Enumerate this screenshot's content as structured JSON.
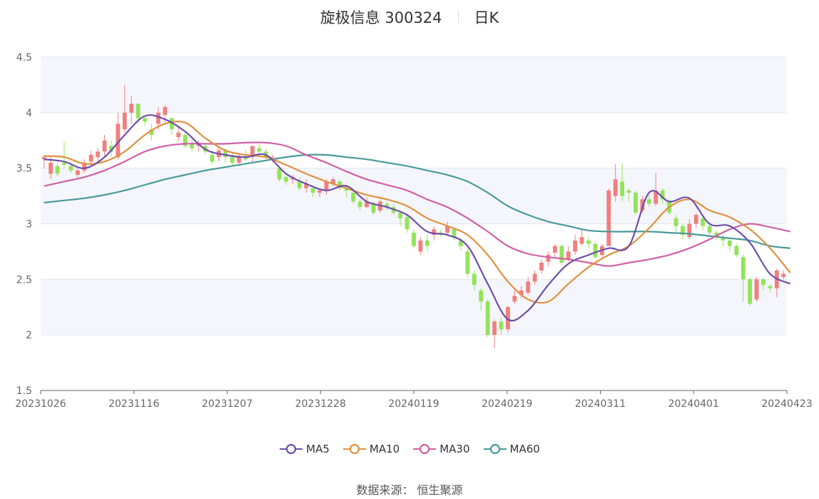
{
  "header": {
    "title": "旋极信息 300324",
    "period": "日K"
  },
  "source": "数据来源： 恒生聚源",
  "colors": {
    "up": "#f07f7f",
    "down": "#92e35a",
    "MA5": "#6f4fa8",
    "MA10": "#e0913f",
    "MA30": "#d160a6",
    "MA60": "#4a9a9a",
    "band": "#f4f6fb",
    "grid": "#e3e6ee",
    "axis": "#666666"
  },
  "chart_data": {
    "type": "candlestick",
    "ylim": [
      1.5,
      4.5
    ],
    "yticks": [
      "1.5",
      "2",
      "2.5",
      "3",
      "3.5",
      "4",
      "4.5"
    ],
    "xticks": [
      "20231026",
      "20231116",
      "20231207",
      "20231228",
      "20240119",
      "20240219",
      "20240311",
      "20240401",
      "20240423"
    ],
    "legend": [
      "MA5",
      "MA10",
      "MA30",
      "MA60"
    ],
    "candles": [
      [
        3.58,
        3.6,
        3.62,
        3.5
      ],
      [
        3.45,
        3.55,
        3.6,
        3.4
      ],
      [
        3.52,
        3.45,
        3.55,
        3.43
      ],
      [
        3.55,
        3.53,
        3.74,
        3.5
      ],
      [
        3.52,
        3.48,
        3.55,
        3.46
      ],
      [
        3.44,
        3.48,
        3.5,
        3.42
      ],
      [
        3.48,
        3.55,
        3.58,
        3.46
      ],
      [
        3.56,
        3.62,
        3.66,
        3.52
      ],
      [
        3.6,
        3.65,
        3.68,
        3.55
      ],
      [
        3.65,
        3.75,
        3.8,
        3.6
      ],
      [
        3.7,
        3.65,
        3.75,
        3.6
      ],
      [
        3.6,
        3.9,
        4.0,
        3.58
      ],
      [
        3.85,
        4.0,
        4.25,
        3.82
      ],
      [
        4.0,
        4.08,
        4.15,
        3.9
      ],
      [
        4.08,
        3.95,
        4.08,
        3.9
      ],
      [
        3.95,
        3.92,
        3.98,
        3.88
      ],
      [
        3.85,
        3.8,
        3.9,
        3.75
      ],
      [
        3.9,
        4.0,
        4.05,
        3.85
      ],
      [
        3.98,
        4.05,
        4.07,
        3.9
      ],
      [
        3.95,
        3.85,
        3.96,
        3.8
      ],
      [
        3.78,
        3.82,
        3.88,
        3.74
      ],
      [
        3.8,
        3.7,
        3.82,
        3.68
      ],
      [
        3.72,
        3.68,
        3.76,
        3.65
      ],
      [
        3.7,
        3.72,
        3.75,
        3.65
      ],
      [
        3.7,
        3.65,
        3.72,
        3.62
      ],
      [
        3.62,
        3.56,
        3.66,
        3.54
      ],
      [
        3.6,
        3.66,
        3.68,
        3.56
      ],
      [
        3.66,
        3.6,
        3.68,
        3.55
      ],
      [
        3.6,
        3.55,
        3.64,
        3.52
      ],
      [
        3.55,
        3.6,
        3.63,
        3.53
      ],
      [
        3.6,
        3.58,
        3.66,
        3.56
      ],
      [
        3.6,
        3.7,
        3.7,
        3.55
      ],
      [
        3.68,
        3.65,
        3.72,
        3.6
      ],
      [
        3.65,
        3.6,
        3.68,
        3.56
      ],
      [
        3.6,
        3.6,
        3.62,
        3.55
      ],
      [
        3.5,
        3.4,
        3.52,
        3.38
      ],
      [
        3.42,
        3.38,
        3.45,
        3.35
      ],
      [
        3.4,
        3.42,
        3.44,
        3.36
      ],
      [
        3.38,
        3.32,
        3.42,
        3.3
      ],
      [
        3.32,
        3.36,
        3.4,
        3.28
      ],
      [
        3.32,
        3.28,
        3.34,
        3.24
      ],
      [
        3.28,
        3.3,
        3.32,
        3.24
      ],
      [
        3.3,
        3.38,
        3.4,
        3.26
      ],
      [
        3.36,
        3.4,
        3.42,
        3.34
      ],
      [
        3.38,
        3.32,
        3.4,
        3.3
      ],
      [
        3.32,
        3.3,
        3.35,
        3.24
      ],
      [
        3.28,
        3.2,
        3.3,
        3.18
      ],
      [
        3.2,
        3.15,
        3.22,
        3.12
      ],
      [
        3.15,
        3.2,
        3.24,
        3.14
      ],
      [
        3.18,
        3.1,
        3.2,
        3.08
      ],
      [
        3.12,
        3.2,
        3.22,
        3.1
      ],
      [
        3.18,
        3.15,
        3.2,
        3.12
      ],
      [
        3.15,
        3.1,
        3.18,
        3.08
      ],
      [
        3.1,
        3.05,
        3.12,
        2.98
      ],
      [
        3.06,
        2.95,
        3.08,
        2.92
      ],
      [
        2.92,
        2.8,
        2.95,
        2.78
      ],
      [
        2.75,
        2.85,
        2.88,
        2.72
      ],
      [
        2.85,
        2.8,
        2.9,
        2.75
      ],
      [
        2.9,
        2.95,
        2.98,
        2.85
      ],
      [
        2.92,
        2.9,
        2.95,
        2.88
      ],
      [
        2.92,
        2.98,
        3.02,
        2.9
      ],
      [
        2.95,
        2.88,
        2.96,
        2.85
      ],
      [
        2.85,
        2.8,
        2.88,
        2.76
      ],
      [
        2.75,
        2.55,
        2.78,
        2.52
      ],
      [
        2.55,
        2.45,
        2.58,
        2.4
      ],
      [
        2.4,
        2.3,
        2.42,
        2.22
      ],
      [
        2.3,
        2.0,
        2.32,
        1.98
      ],
      [
        2.0,
        2.12,
        2.14,
        1.88
      ],
      [
        2.12,
        2.05,
        2.15,
        2.0
      ],
      [
        2.05,
        2.25,
        2.26,
        2.02
      ],
      [
        2.3,
        2.35,
        2.4,
        2.28
      ],
      [
        2.36,
        2.4,
        2.44,
        2.33
      ],
      [
        2.38,
        2.48,
        2.52,
        2.36
      ],
      [
        2.48,
        2.55,
        2.58,
        2.45
      ],
      [
        2.58,
        2.65,
        2.68,
        2.55
      ],
      [
        2.66,
        2.72,
        2.75,
        2.62
      ],
      [
        2.74,
        2.8,
        2.82,
        2.7
      ],
      [
        2.8,
        2.65,
        2.82,
        2.62
      ],
      [
        2.68,
        2.75,
        2.8,
        2.66
      ],
      [
        2.75,
        2.85,
        2.9,
        2.72
      ],
      [
        2.82,
        2.88,
        2.95,
        2.8
      ],
      [
        2.85,
        2.82,
        2.88,
        2.78
      ],
      [
        2.82,
        2.7,
        2.84,
        2.68
      ],
      [
        2.72,
        2.8,
        2.82,
        2.7
      ],
      [
        2.8,
        3.3,
        3.32,
        2.8
      ],
      [
        3.25,
        3.4,
        3.54,
        3.2
      ],
      [
        3.38,
        3.25,
        3.54,
        3.2
      ],
      [
        3.3,
        3.28,
        3.32,
        3.2
      ],
      [
        3.28,
        3.1,
        3.3,
        3.08
      ],
      [
        3.12,
        3.22,
        3.25,
        3.1
      ],
      [
        3.22,
        3.18,
        3.26,
        3.15
      ],
      [
        3.18,
        3.3,
        3.46,
        3.16
      ],
      [
        3.3,
        3.22,
        3.32,
        3.18
      ],
      [
        3.2,
        3.1,
        3.22,
        3.08
      ],
      [
        3.05,
        2.98,
        3.08,
        2.92
      ],
      [
        2.98,
        2.9,
        3.0,
        2.86
      ],
      [
        2.88,
        3.0,
        3.04,
        2.86
      ],
      [
        3.0,
        3.08,
        3.1,
        2.96
      ],
      [
        3.05,
        2.98,
        3.06,
        2.94
      ],
      [
        2.98,
        2.92,
        3.0,
        2.9
      ],
      [
        2.92,
        2.88,
        2.94,
        2.85
      ],
      [
        2.88,
        2.85,
        2.9,
        2.8
      ],
      [
        2.85,
        2.8,
        2.88,
        2.76
      ],
      [
        2.8,
        2.72,
        2.82,
        2.7
      ],
      [
        2.7,
        2.5,
        2.72,
        2.3
      ],
      [
        2.5,
        2.28,
        2.52,
        2.26
      ],
      [
        2.32,
        2.5,
        2.52,
        2.3
      ],
      [
        2.5,
        2.45,
        2.52,
        2.4
      ],
      [
        2.44,
        2.42,
        2.46,
        2.38
      ],
      [
        2.42,
        2.58,
        2.6,
        2.34
      ],
      [
        2.52,
        2.55,
        2.58,
        2.5
      ]
    ],
    "series": [
      {
        "name": "MA5",
        "x": [
          0,
          3,
          6,
          9,
          12,
          15,
          18,
          21,
          24,
          27,
          30,
          33,
          36,
          39,
          42,
          45,
          48,
          51,
          54,
          57,
          60,
          63,
          66,
          69,
          72,
          75,
          78,
          81,
          84,
          87,
          90,
          93,
          96,
          99,
          102,
          105,
          108,
          111
        ],
        "values": [
          3.58,
          3.56,
          3.5,
          3.6,
          3.8,
          3.97,
          3.94,
          3.83,
          3.67,
          3.62,
          3.6,
          3.62,
          3.45,
          3.36,
          3.3,
          3.34,
          3.2,
          3.15,
          3.08,
          2.93,
          2.9,
          2.8,
          2.46,
          2.14,
          2.22,
          2.45,
          2.64,
          2.72,
          2.78,
          2.8,
          3.28,
          3.2,
          3.23,
          3.0,
          2.98,
          2.83,
          2.55,
          2.46
        ]
      },
      {
        "name": "MA10",
        "x": [
          0,
          3,
          6,
          9,
          12,
          15,
          18,
          21,
          24,
          27,
          30,
          33,
          36,
          39,
          42,
          45,
          48,
          51,
          54,
          57,
          60,
          63,
          66,
          69,
          72,
          75,
          78,
          81,
          84,
          87,
          90,
          93,
          96,
          99,
          102,
          105,
          108,
          111
        ],
        "values": [
          3.61,
          3.6,
          3.54,
          3.56,
          3.65,
          3.8,
          3.9,
          3.91,
          3.77,
          3.66,
          3.62,
          3.6,
          3.53,
          3.45,
          3.38,
          3.32,
          3.26,
          3.22,
          3.16,
          3.05,
          2.98,
          2.9,
          2.72,
          2.48,
          2.32,
          2.3,
          2.46,
          2.61,
          2.72,
          2.8,
          2.96,
          3.15,
          3.22,
          3.12,
          3.06,
          2.95,
          2.78,
          2.56
        ]
      },
      {
        "name": "MA30",
        "x": [
          0,
          3,
          6,
          9,
          12,
          15,
          18,
          21,
          24,
          27,
          30,
          33,
          36,
          39,
          42,
          45,
          48,
          51,
          54,
          57,
          60,
          63,
          66,
          69,
          72,
          75,
          78,
          81,
          84,
          87,
          90,
          93,
          96,
          99,
          102,
          105,
          108,
          111
        ],
        "values": [
          3.34,
          3.38,
          3.42,
          3.48,
          3.56,
          3.65,
          3.7,
          3.72,
          3.72,
          3.72,
          3.73,
          3.73,
          3.7,
          3.62,
          3.55,
          3.47,
          3.4,
          3.35,
          3.3,
          3.22,
          3.15,
          3.05,
          2.93,
          2.8,
          2.73,
          2.7,
          2.68,
          2.65,
          2.62,
          2.65,
          2.68,
          2.72,
          2.78,
          2.86,
          2.95,
          3.0,
          2.97,
          2.93
        ]
      },
      {
        "name": "MA60",
        "x": [
          0,
          3,
          6,
          9,
          12,
          15,
          18,
          21,
          24,
          27,
          30,
          33,
          36,
          39,
          42,
          45,
          48,
          51,
          54,
          57,
          60,
          63,
          66,
          69,
          72,
          75,
          78,
          81,
          84,
          87,
          90,
          93,
          96,
          99,
          102,
          105,
          108,
          111
        ],
        "values": [
          3.19,
          3.21,
          3.23,
          3.26,
          3.3,
          3.35,
          3.4,
          3.44,
          3.48,
          3.51,
          3.54,
          3.57,
          3.6,
          3.62,
          3.62,
          3.6,
          3.58,
          3.55,
          3.52,
          3.48,
          3.44,
          3.38,
          3.28,
          3.16,
          3.08,
          3.02,
          2.98,
          2.94,
          2.93,
          2.93,
          2.93,
          2.92,
          2.91,
          2.89,
          2.87,
          2.85,
          2.8,
          2.78
        ]
      }
    ]
  }
}
